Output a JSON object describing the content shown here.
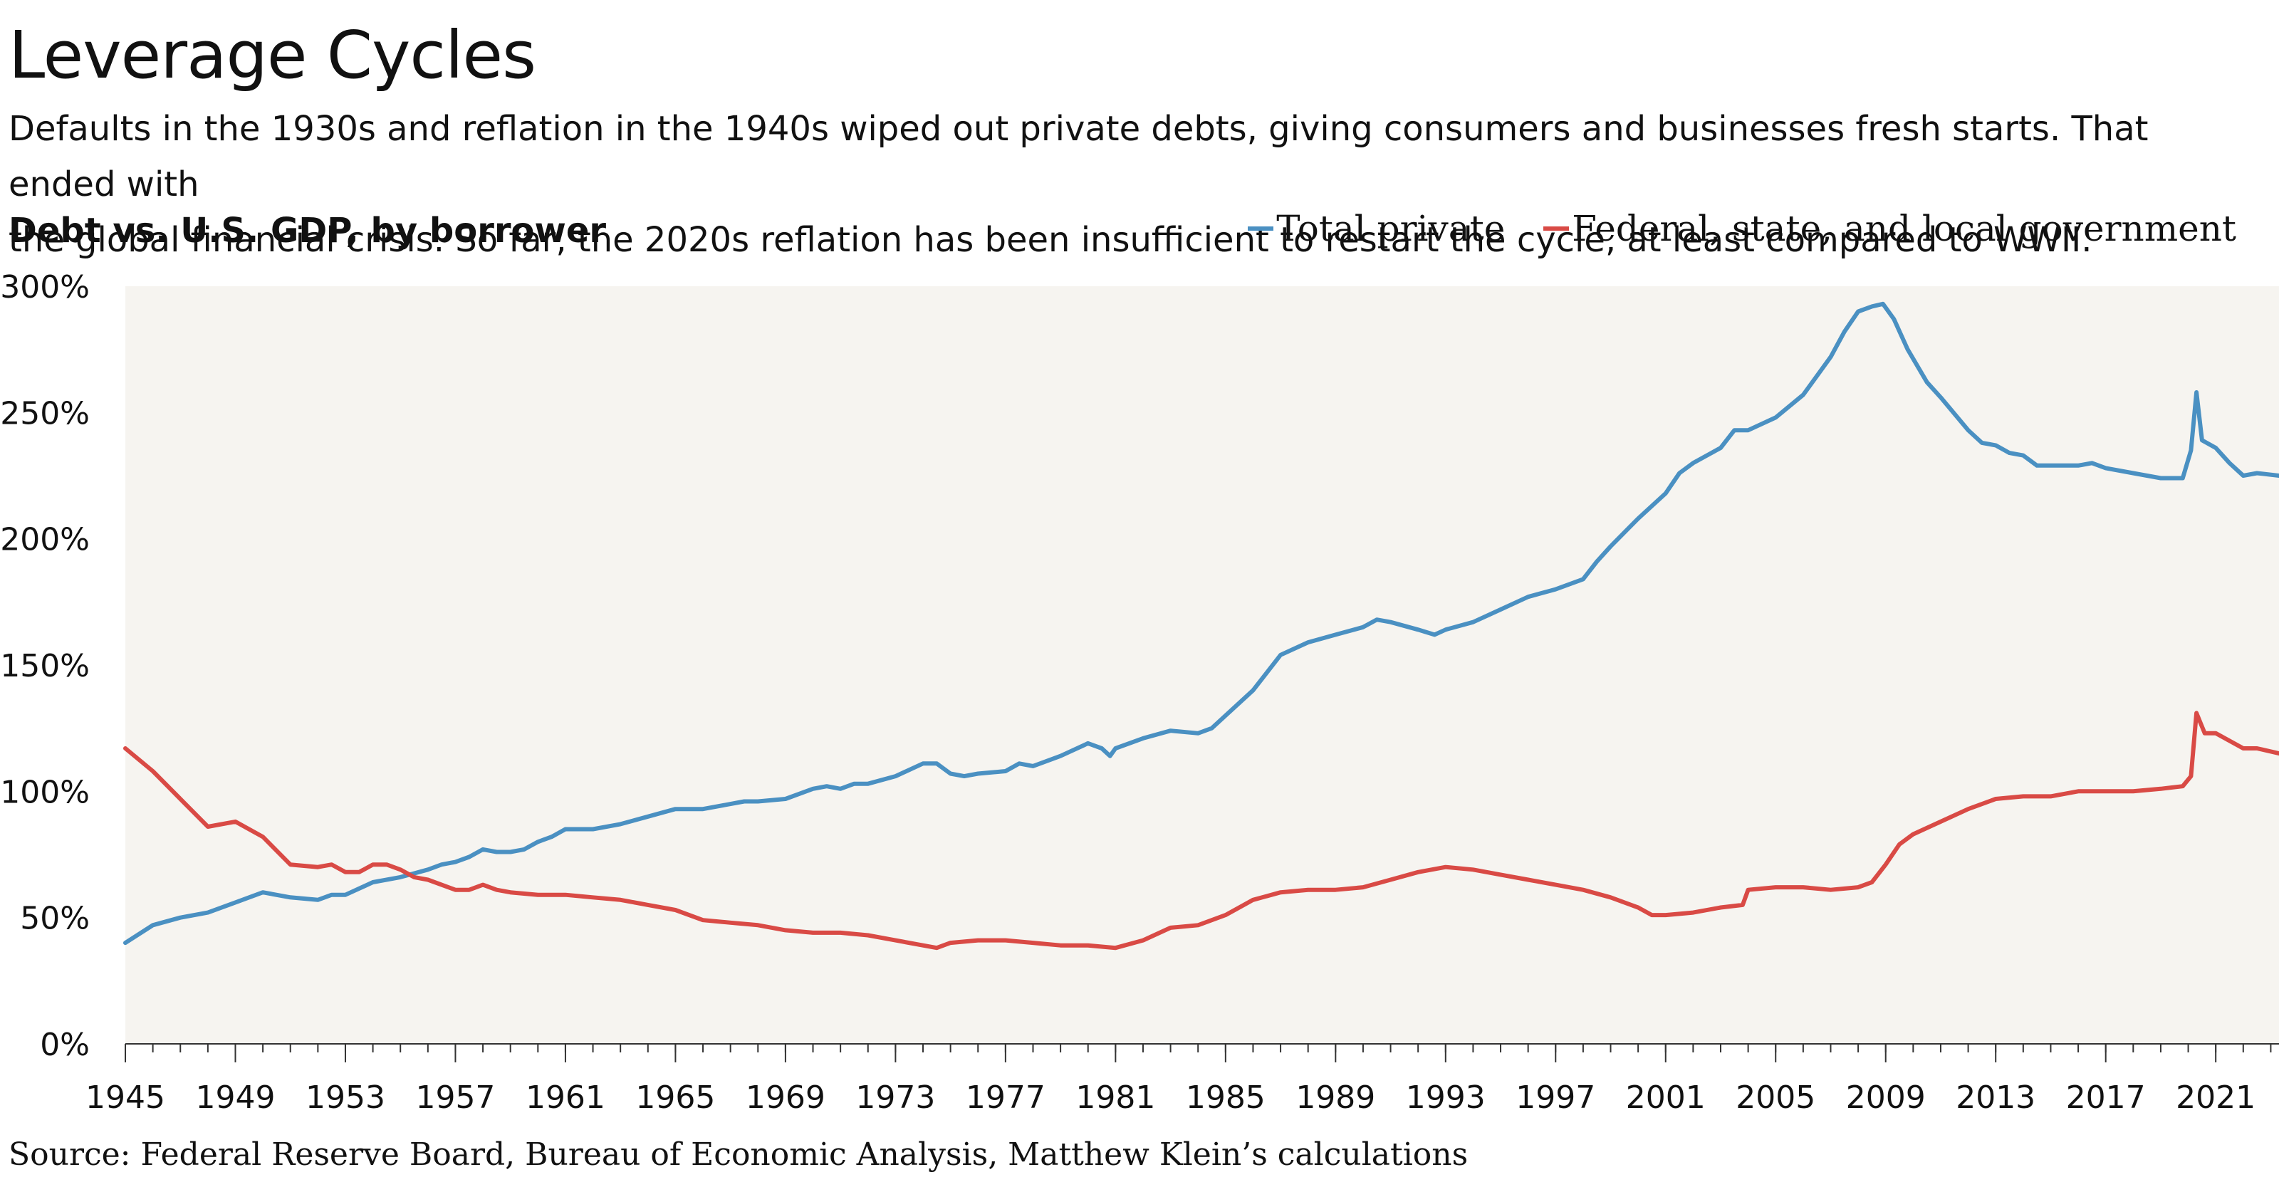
{
  "header": {
    "title": "Leverage Cycles",
    "subtitle": "Defaults in the 1930s and reflation in the 1940s wiped out private debts, giving consumers and businesses fresh starts. That ended with\nthe global financial crisis. So far, the 2020s reflation has been insufficient to restart the cycle, at least compared to WWII.",
    "chart_label": "Debt vs. U.S. GDP, by borrower"
  },
  "footer": {
    "source": "Source: Federal Reserve Board, Bureau of Economic Analysis, Matthew Klein’s calculations"
  },
  "colors": {
    "plot_background": "#f6f4f0",
    "total_private": "#4a90c2",
    "government": "#d94a45"
  },
  "chart_data": {
    "type": "line",
    "title": "Debt vs. U.S. GDP, by borrower",
    "xlabel": "",
    "ylabel": "",
    "xlim": [
      1945,
      2023.3
    ],
    "ylim": [
      0,
      300
    ],
    "x_ticks": [
      "1945",
      "1949",
      "1953",
      "1957",
      "1961",
      "1965",
      "1969",
      "1973",
      "1977",
      "1981",
      "1985",
      "1989",
      "1993",
      "1997",
      "2001",
      "2005",
      "2009",
      "2013",
      "2017",
      "2021"
    ],
    "y_ticks": [
      "0%",
      "50%",
      "100%",
      "150%",
      "200%",
      "250%",
      "300%"
    ],
    "legend_position": "top-right",
    "grid": false,
    "series": [
      {
        "name": "Total private",
        "points": [
          [
            1945.0,
            40
          ],
          [
            1946.0,
            47
          ],
          [
            1947.0,
            50
          ],
          [
            1948.0,
            52
          ],
          [
            1949.0,
            56
          ],
          [
            1950.0,
            60
          ],
          [
            1951.0,
            58
          ],
          [
            1952.0,
            57
          ],
          [
            1952.5,
            59
          ],
          [
            1953.0,
            59
          ],
          [
            1954.0,
            64
          ],
          [
            1955.0,
            66
          ],
          [
            1956.0,
            69
          ],
          [
            1956.5,
            71
          ],
          [
            1957.0,
            72
          ],
          [
            1957.5,
            74
          ],
          [
            1958.0,
            77
          ],
          [
            1958.5,
            76
          ],
          [
            1959.0,
            76
          ],
          [
            1959.5,
            77
          ],
          [
            1960.0,
            80
          ],
          [
            1960.5,
            82
          ],
          [
            1961.0,
            85
          ],
          [
            1962.0,
            85
          ],
          [
            1963.0,
            87
          ],
          [
            1964.0,
            90
          ],
          [
            1965.0,
            93
          ],
          [
            1966.0,
            93
          ],
          [
            1967.0,
            95
          ],
          [
            1967.5,
            96
          ],
          [
            1968.0,
            96
          ],
          [
            1969.0,
            97
          ],
          [
            1970.0,
            101
          ],
          [
            1970.5,
            102
          ],
          [
            1971.0,
            101
          ],
          [
            1971.5,
            103
          ],
          [
            1972.0,
            103
          ],
          [
            1973.0,
            106
          ],
          [
            1974.0,
            111
          ],
          [
            1974.5,
            111
          ],
          [
            1975.0,
            107
          ],
          [
            1975.5,
            106
          ],
          [
            1976.0,
            107
          ],
          [
            1977.0,
            108
          ],
          [
            1977.5,
            111
          ],
          [
            1978.0,
            110
          ],
          [
            1979.0,
            114
          ],
          [
            1980.0,
            119
          ],
          [
            1980.5,
            117
          ],
          [
            1980.8,
            114
          ],
          [
            1981.0,
            117
          ],
          [
            1982.0,
            121
          ],
          [
            1983.0,
            124
          ],
          [
            1984.0,
            123
          ],
          [
            1984.5,
            125
          ],
          [
            1985.0,
            130
          ],
          [
            1986.0,
            140
          ],
          [
            1987.0,
            154
          ],
          [
            1988.0,
            159
          ],
          [
            1989.0,
            162
          ],
          [
            1990.0,
            165
          ],
          [
            1990.5,
            168
          ],
          [
            1991.0,
            167
          ],
          [
            1992.0,
            164
          ],
          [
            1992.6,
            162
          ],
          [
            1993.0,
            164
          ],
          [
            1994.0,
            167
          ],
          [
            1995.0,
            172
          ],
          [
            1996.0,
            177
          ],
          [
            1997.0,
            180
          ],
          [
            1998.0,
            184
          ],
          [
            1998.5,
            191
          ],
          [
            1999.0,
            197
          ],
          [
            2000.0,
            208
          ],
          [
            2001.0,
            218
          ],
          [
            2001.5,
            226
          ],
          [
            2002.0,
            230
          ],
          [
            2003.0,
            236
          ],
          [
            2003.5,
            243
          ],
          [
            2004.0,
            243
          ],
          [
            2005.0,
            248
          ],
          [
            2006.0,
            257
          ],
          [
            2007.0,
            272
          ],
          [
            2007.5,
            282
          ],
          [
            2008.0,
            290
          ],
          [
            2008.5,
            292
          ],
          [
            2008.9,
            293
          ],
          [
            2009.3,
            287
          ],
          [
            2009.8,
            275
          ],
          [
            2010.5,
            262
          ],
          [
            2011.0,
            256
          ],
          [
            2012.0,
            243
          ],
          [
            2012.5,
            238
          ],
          [
            2013.0,
            237
          ],
          [
            2013.5,
            234
          ],
          [
            2014.0,
            233
          ],
          [
            2014.5,
            229
          ],
          [
            2015.0,
            229
          ],
          [
            2016.0,
            229
          ],
          [
            2016.5,
            230
          ],
          [
            2017.0,
            228
          ],
          [
            2018.0,
            226
          ],
          [
            2019.0,
            224
          ],
          [
            2019.8,
            224
          ],
          [
            2020.1,
            235
          ],
          [
            2020.3,
            258
          ],
          [
            2020.5,
            239
          ],
          [
            2021.0,
            236
          ],
          [
            2021.5,
            230
          ],
          [
            2022.0,
            225
          ],
          [
            2022.5,
            226
          ],
          [
            2023.3,
            225
          ]
        ]
      },
      {
        "name": "Federal, state, and local government",
        "points": [
          [
            1945.0,
            117
          ],
          [
            1946.0,
            108
          ],
          [
            1947.0,
            97
          ],
          [
            1948.0,
            86
          ],
          [
            1949.0,
            88
          ],
          [
            1950.0,
            82
          ],
          [
            1951.0,
            71
          ],
          [
            1952.0,
            70
          ],
          [
            1952.5,
            71
          ],
          [
            1953.0,
            68
          ],
          [
            1953.5,
            68
          ],
          [
            1954.0,
            71
          ],
          [
            1954.5,
            71
          ],
          [
            1955.0,
            69
          ],
          [
            1955.5,
            66
          ],
          [
            1956.0,
            65
          ],
          [
            1957.0,
            61
          ],
          [
            1957.5,
            61
          ],
          [
            1958.0,
            63
          ],
          [
            1958.5,
            61
          ],
          [
            1959.0,
            60
          ],
          [
            1960.0,
            59
          ],
          [
            1961.0,
            59
          ],
          [
            1962.0,
            58
          ],
          [
            1963.0,
            57
          ],
          [
            1964.0,
            55
          ],
          [
            1965.0,
            53
          ],
          [
            1966.0,
            49
          ],
          [
            1967.0,
            48
          ],
          [
            1968.0,
            47
          ],
          [
            1969.0,
            45
          ],
          [
            1970.0,
            44
          ],
          [
            1971.0,
            44
          ],
          [
            1972.0,
            43
          ],
          [
            1973.0,
            41
          ],
          [
            1974.0,
            39
          ],
          [
            1974.5,
            38
          ],
          [
            1975.0,
            40
          ],
          [
            1976.0,
            41
          ],
          [
            1977.0,
            41
          ],
          [
            1978.0,
            40
          ],
          [
            1979.0,
            39
          ],
          [
            1980.0,
            39
          ],
          [
            1981.0,
            38
          ],
          [
            1982.0,
            41
          ],
          [
            1983.0,
            46
          ],
          [
            1984.0,
            47
          ],
          [
            1985.0,
            51
          ],
          [
            1986.0,
            57
          ],
          [
            1987.0,
            60
          ],
          [
            1988.0,
            61
          ],
          [
            1989.0,
            61
          ],
          [
            1990.0,
            62
          ],
          [
            1991.0,
            65
          ],
          [
            1992.0,
            68
          ],
          [
            1993.0,
            70
          ],
          [
            1994.0,
            69
          ],
          [
            1995.0,
            67
          ],
          [
            1996.0,
            65
          ],
          [
            1997.0,
            63
          ],
          [
            1998.0,
            61
          ],
          [
            1999.0,
            58
          ],
          [
            2000.0,
            54
          ],
          [
            2000.5,
            51
          ],
          [
            2001.0,
            51
          ],
          [
            2002.0,
            52
          ],
          [
            2003.0,
            54
          ],
          [
            2003.8,
            55
          ],
          [
            2004.0,
            61
          ],
          [
            2005.0,
            62
          ],
          [
            2006.0,
            62
          ],
          [
            2007.0,
            61
          ],
          [
            2008.0,
            62
          ],
          [
            2008.5,
            64
          ],
          [
            2009.0,
            71
          ],
          [
            2009.5,
            79
          ],
          [
            2010.0,
            83
          ],
          [
            2011.0,
            88
          ],
          [
            2012.0,
            93
          ],
          [
            2013.0,
            97
          ],
          [
            2014.0,
            98
          ],
          [
            2015.0,
            98
          ],
          [
            2016.0,
            100
          ],
          [
            2017.0,
            100
          ],
          [
            2018.0,
            100
          ],
          [
            2019.0,
            101
          ],
          [
            2019.8,
            102
          ],
          [
            2020.1,
            106
          ],
          [
            2020.3,
            131
          ],
          [
            2020.6,
            123
          ],
          [
            2021.0,
            123
          ],
          [
            2021.5,
            120
          ],
          [
            2022.0,
            117
          ],
          [
            2022.5,
            117
          ],
          [
            2023.3,
            115
          ]
        ]
      }
    ]
  }
}
